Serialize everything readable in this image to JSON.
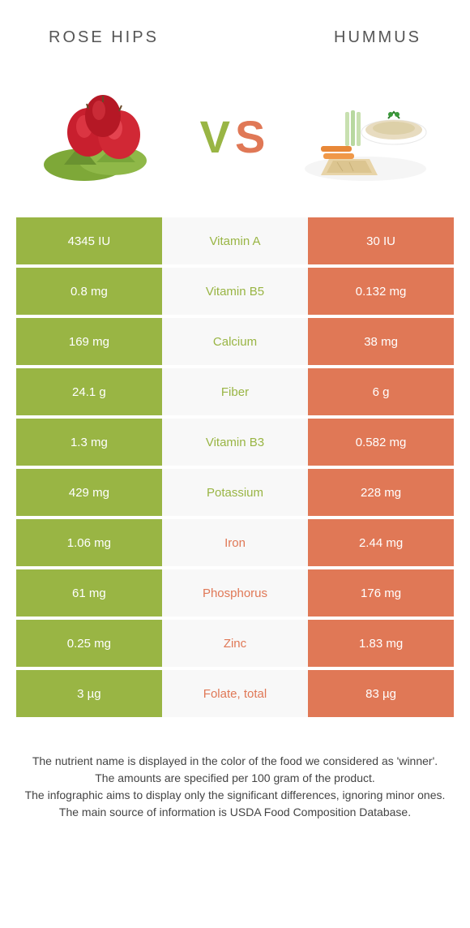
{
  "header": {
    "left": "Rose hips",
    "right": "Hummus"
  },
  "vs": {
    "v": "V",
    "s": "S"
  },
  "colors": {
    "green": "#99b544",
    "orange": "#e07856",
    "mid_bg": "#f8f8f8"
  },
  "rows": [
    {
      "left": "4345 IU",
      "mid": "Vitamin A",
      "right": "30 IU",
      "winner": "left"
    },
    {
      "left": "0.8 mg",
      "mid": "Vitamin B5",
      "right": "0.132 mg",
      "winner": "left"
    },
    {
      "left": "169 mg",
      "mid": "Calcium",
      "right": "38 mg",
      "winner": "left"
    },
    {
      "left": "24.1 g",
      "mid": "Fiber",
      "right": "6 g",
      "winner": "left"
    },
    {
      "left": "1.3 mg",
      "mid": "Vitamin B3",
      "right": "0.582 mg",
      "winner": "left"
    },
    {
      "left": "429 mg",
      "mid": "Potassium",
      "right": "228 mg",
      "winner": "left"
    },
    {
      "left": "1.06 mg",
      "mid": "Iron",
      "right": "2.44 mg",
      "winner": "right"
    },
    {
      "left": "61 mg",
      "mid": "Phosphorus",
      "right": "176 mg",
      "winner": "right"
    },
    {
      "left": "0.25 mg",
      "mid": "Zinc",
      "right": "1.83 mg",
      "winner": "right"
    },
    {
      "left": "3 µg",
      "mid": "Folate, total",
      "right": "83 µg",
      "winner": "right"
    }
  ],
  "footer": {
    "line1": "The nutrient name is displayed in the color of the food we considered as 'winner'.",
    "line2": "The amounts are specified per 100 gram of the product.",
    "line3": "The infographic aims to display only the significant differences, ignoring minor ones.",
    "line4": "The main source of information is USDA Food Composition Database."
  }
}
